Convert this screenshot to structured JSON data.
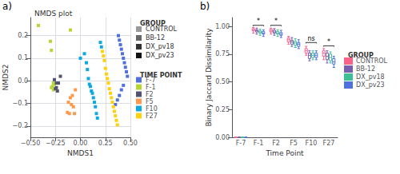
{
  "chart_data": [
    {
      "type": "scatter",
      "title": "NMDS plot",
      "annotations": [
        "a)"
      ],
      "x_label": "NMDS1",
      "y_label": "NMDS2",
      "xlim": [
        -0.5,
        0.5
      ],
      "ylim": [
        -0.25,
        0.28
      ],
      "xticks": [
        {
          "value": -0.5,
          "label": "−0.50"
        },
        {
          "value": -0.25,
          "label": "−0.25"
        },
        {
          "value": 0.0,
          "label": "0.00"
        },
        0.25,
        {
          "value": 0.5,
          "label": "0.50"
        }
      ],
      "yticks": [
        {
          "value": -0.2,
          "label": "−0.2"
        },
        {
          "value": -0.1,
          "label": "−0.1"
        },
        {
          "value": 0.0,
          "label": "0.0"
        },
        0.1,
        0.2
      ],
      "grid": true,
      "marker": "square",
      "legend_title": "TIME POINT",
      "series": [
        {
          "name": "F-7",
          "x": [
            0.38,
            0.39,
            0.4,
            0.41,
            0.42,
            0.43,
            0.44,
            0.45,
            0.46,
            0.47,
            0.43,
            0.41,
            0.39,
            0.37,
            0.35
          ],
          "y": [
            0.2,
            0.18,
            0.16,
            0.14,
            0.12,
            0.1,
            0.08,
            0.06,
            0.04,
            0.02,
            -0.02,
            -0.04,
            -0.065,
            -0.085,
            -0.105
          ]
        },
        {
          "name": "F-1",
          "x": [
            -0.42,
            -0.3,
            -0.29,
            -0.1,
            -0.27,
            -0.28,
            -0.29,
            -0.27,
            -0.26
          ],
          "y": [
            0.245,
            0.175,
            0.135,
            0.225,
            -0.01,
            -0.025,
            -0.03,
            -0.04,
            -0.015
          ]
        },
        {
          "name": "F2",
          "x": [
            -0.2,
            -0.22,
            -0.24,
            -0.26,
            -0.24,
            -0.25,
            -0.23
          ],
          "y": [
            0.02,
            -0.01,
            -0.01,
            0.005,
            -0.03,
            -0.035,
            -0.045
          ]
        },
        {
          "name": "F5",
          "x": [
            -0.05,
            -0.08,
            -0.1,
            -0.12,
            -0.09,
            -0.07,
            -0.13,
            -0.06,
            -0.11
          ],
          "y": [
            -0.04,
            -0.065,
            -0.075,
            -0.095,
            -0.105,
            -0.115,
            -0.14,
            -0.145,
            -0.145
          ]
        },
        {
          "name": "F10",
          "x": [
            0.0,
            0.04,
            0.06,
            0.07,
            0.08,
            0.09,
            0.1,
            0.11,
            0.12,
            0.13,
            0.14,
            0.15,
            0.16,
            0.17,
            0.2,
            0.21
          ],
          "y": [
            0.1,
            0.12,
            0.08,
            0.05,
            0.01,
            -0.015,
            -0.025,
            -0.045,
            -0.055,
            -0.075,
            -0.095,
            -0.115,
            -0.145,
            -0.165,
            0.17,
            0.15
          ]
        },
        {
          "name": "F27",
          "x": [
            0.22,
            0.23,
            0.24,
            0.25,
            0.26,
            0.27,
            0.28,
            0.29,
            0.3,
            0.31,
            0.32,
            0.33,
            0.34,
            0.35,
            0.36,
            0.37
          ],
          "y": [
            0.13,
            0.11,
            0.09,
            0.055,
            0.03,
            0.01,
            -0.01,
            -0.035,
            -0.055,
            -0.075,
            -0.095,
            -0.115,
            -0.135,
            -0.155,
            -0.175,
            -0.195
          ]
        }
      ],
      "extra_legend": {
        "title": "GROUP",
        "names": [
          "CONTROL",
          "BB-12",
          "DX_pv18",
          "DX_pv23"
        ],
        "colors": [
          "#999999",
          "#666666",
          "#333333",
          "#111111"
        ]
      }
    },
    {
      "type": "boxplot",
      "annotations": [
        "b)"
      ],
      "x_label": "Time Point",
      "y_label": "Binary Jaccard Dissimilarity",
      "categories": [
        "F-7",
        "F-1",
        "F2",
        "F5",
        "F10",
        "F27"
      ],
      "ylim": [
        0.0,
        1.08
      ],
      "yticks": [
        {
          "value": 0.0,
          "label": "0.00"
        },
        0.25,
        {
          "value": 0.5,
          "label": "0.50"
        },
        0.75,
        {
          "value": 1.0,
          "label": "1.00"
        }
      ],
      "grid": false,
      "legend_title": "GROUP",
      "series": [
        {
          "name": "CONTROL",
          "whislo": [
            0.0,
            0.94,
            0.93,
            0.84,
            0.74,
            0.7
          ],
          "q1": [
            0.0,
            0.96,
            0.95,
            0.86,
            0.76,
            0.73
          ],
          "median": [
            0.0,
            0.97,
            0.96,
            0.88,
            0.78,
            0.76
          ],
          "q3": [
            0.0,
            0.98,
            0.975,
            0.895,
            0.8,
            0.78
          ],
          "whishi": [
            0.0,
            0.99,
            0.985,
            0.91,
            0.82,
            0.8
          ]
        },
        {
          "name": "BB-12",
          "whislo": [
            0.0,
            0.93,
            0.92,
            0.82,
            0.69,
            0.67
          ],
          "q1": [
            0.0,
            0.95,
            0.94,
            0.84,
            0.71,
            0.7
          ],
          "median": [
            0.0,
            0.96,
            0.95,
            0.86,
            0.74,
            0.73
          ],
          "q3": [
            0.0,
            0.97,
            0.965,
            0.875,
            0.76,
            0.76
          ],
          "whishi": [
            0.0,
            0.985,
            0.98,
            0.9,
            0.78,
            0.78
          ]
        },
        {
          "name": "DX_pv18",
          "whislo": [
            0.0,
            0.92,
            0.91,
            0.81,
            0.7,
            0.67
          ],
          "q1": [
            0.0,
            0.94,
            0.93,
            0.83,
            0.72,
            0.69
          ],
          "median": [
            0.0,
            0.95,
            0.94,
            0.85,
            0.74,
            0.72
          ],
          "q3": [
            0.0,
            0.96,
            0.955,
            0.865,
            0.76,
            0.75
          ],
          "whishi": [
            0.0,
            0.975,
            0.97,
            0.89,
            0.78,
            0.77
          ]
        },
        {
          "name": "DX_pv23",
          "whislo": [
            0.0,
            0.91,
            0.9,
            0.8,
            0.7,
            0.63
          ],
          "q1": [
            0.0,
            0.93,
            0.92,
            0.82,
            0.72,
            0.66
          ],
          "median": [
            0.0,
            0.94,
            0.93,
            0.84,
            0.74,
            0.68
          ],
          "q3": [
            0.0,
            0.955,
            0.945,
            0.855,
            0.76,
            0.71
          ],
          "whishi": [
            0.0,
            0.97,
            0.965,
            0.88,
            0.78,
            0.73
          ]
        }
      ],
      "brackets": [
        {
          "category": "F-1",
          "y": 1.01,
          "label": "*"
        },
        {
          "category": "F2",
          "y": 1.01,
          "label": "*"
        },
        {
          "category": "F10",
          "y": 0.855,
          "label": "ns"
        },
        {
          "category": "F27",
          "y": 0.825,
          "label": "*"
        }
      ]
    }
  ]
}
